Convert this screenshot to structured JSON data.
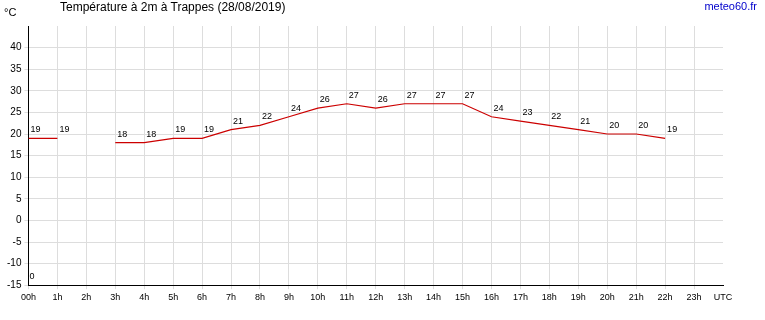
{
  "chart_data": {
    "type": "line",
    "title": "Température à 2m à Trappes (28/08/2019)",
    "source": "meteo60.fr",
    "y_label": "°C",
    "x_label": "UTC",
    "x": [
      0,
      1,
      2,
      3,
      4,
      5,
      6,
      7,
      8,
      9,
      10,
      11,
      12,
      13,
      14,
      15,
      16,
      17,
      18,
      19,
      20,
      21,
      22
    ],
    "series": [
      {
        "name": "Température",
        "color": "#cc0000",
        "values": [
          19,
          19,
          null,
          18,
          18,
          19,
          19,
          21,
          22,
          24,
          26,
          27,
          26,
          27,
          27,
          27,
          24,
          23,
          22,
          21,
          20,
          20,
          19
        ]
      }
    ],
    "xlim": [
      0,
      24
    ],
    "xticks": [
      {
        "value": 0,
        "label": "00h"
      },
      {
        "value": 1,
        "label": "1h"
      },
      {
        "value": 2,
        "label": "2h"
      },
      {
        "value": 3,
        "label": "3h"
      },
      {
        "value": 4,
        "label": "4h"
      },
      {
        "value": 5,
        "label": "5h"
      },
      {
        "value": 6,
        "label": "6h"
      },
      {
        "value": 7,
        "label": "7h"
      },
      {
        "value": 8,
        "label": "8h"
      },
      {
        "value": 9,
        "label": "9h"
      },
      {
        "value": 10,
        "label": "10h"
      },
      {
        "value": 11,
        "label": "11h"
      },
      {
        "value": 12,
        "label": "12h"
      },
      {
        "value": 13,
        "label": "13h"
      },
      {
        "value": 14,
        "label": "14h"
      },
      {
        "value": 15,
        "label": "15h"
      },
      {
        "value": 16,
        "label": "16h"
      },
      {
        "value": 17,
        "label": "17h"
      },
      {
        "value": 18,
        "label": "18h"
      },
      {
        "value": 19,
        "label": "19h"
      },
      {
        "value": 20,
        "label": "20h"
      },
      {
        "value": 21,
        "label": "21h"
      },
      {
        "value": 22,
        "label": "22h"
      },
      {
        "value": 23,
        "label": "23h"
      }
    ],
    "ylim": [
      -15,
      45
    ],
    "yticks": [
      -15,
      -10,
      -5,
      0,
      5,
      10,
      15,
      20,
      25,
      30,
      35,
      40
    ],
    "grid": true,
    "data_labels": true,
    "annotations": [
      {
        "text": "0",
        "x": 0,
        "y": -13
      }
    ]
  }
}
